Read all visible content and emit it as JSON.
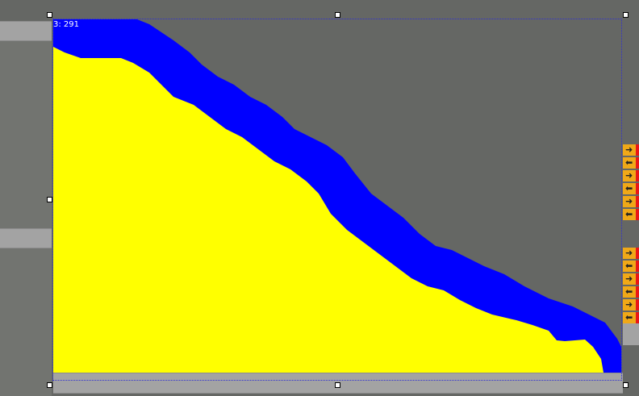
{
  "selection_label": "3: 291",
  "colors": {
    "upper_fill": "#0000ff",
    "lower_fill": "#ffff00",
    "background": "#656764",
    "button": "#f0a818"
  },
  "side_buttons": [
    {
      "icon": "arrow-right-icon"
    },
    {
      "icon": "arrow-left-icon"
    },
    {
      "icon": "arrow-right-icon"
    },
    {
      "icon": "arrow-left-icon"
    },
    {
      "icon": "arrow-right-icon"
    },
    {
      "icon": "arrow-left-icon"
    },
    {
      "icon": "arrow-right-icon"
    },
    {
      "icon": "arrow-left-icon"
    },
    {
      "icon": "arrow-right-icon"
    },
    {
      "icon": "arrow-left-icon"
    },
    {
      "icon": "arrow-right-icon"
    },
    {
      "icon": "arrow-left-icon"
    }
  ]
}
